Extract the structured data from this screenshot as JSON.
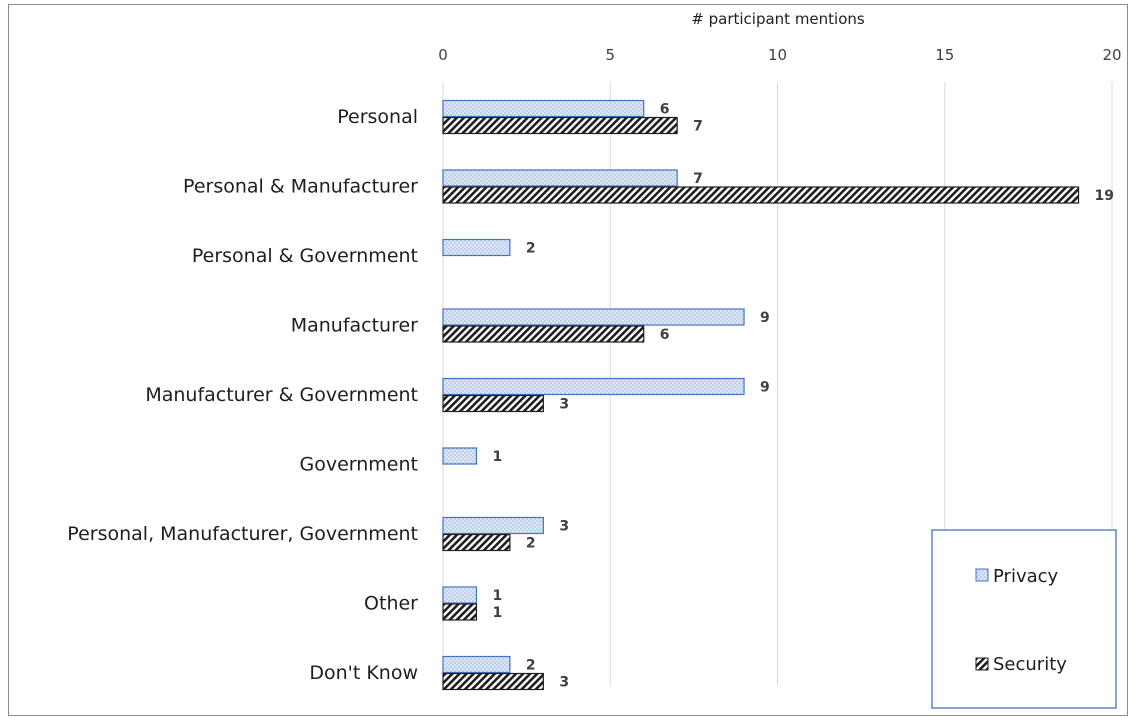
{
  "chart_data": {
    "type": "bar",
    "orientation": "horizontal",
    "xlabel": "# participant mentions",
    "xlim": [
      0,
      20
    ],
    "xticks": [
      0,
      5,
      10,
      15,
      20
    ],
    "categories": [
      "Personal",
      "Personal  & Manufacturer",
      "Personal & Government",
      "Manufacturer",
      "Manufacturer & Government",
      "Government",
      "Personal, Manufacturer, Government",
      "Other",
      "Don't Know"
    ],
    "series": [
      {
        "name": "Privacy",
        "values": [
          6,
          7,
          2,
          9,
          9,
          1,
          3,
          1,
          2
        ],
        "color": "#c9d9f1",
        "border": "#4472c4"
      },
      {
        "name": "Security",
        "values": [
          7,
          19,
          null,
          6,
          3,
          null,
          2,
          1,
          3
        ],
        "color": "#1e1e1e",
        "border": "#1e1e1e"
      }
    ],
    "grid": true,
    "legend_position": "bottom-right",
    "data_labels": true
  }
}
